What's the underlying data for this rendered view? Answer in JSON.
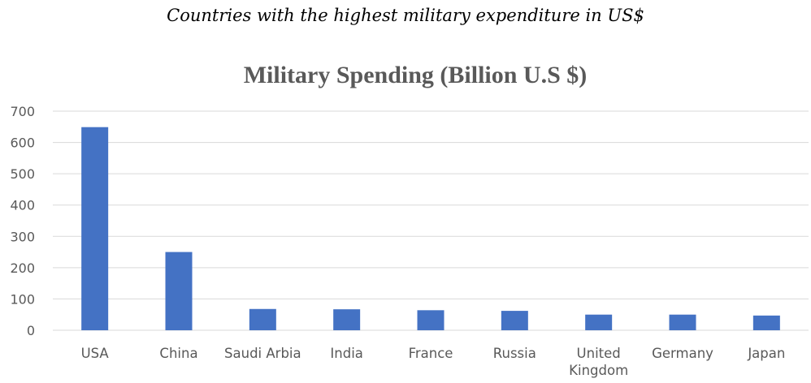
{
  "caption": "Countries with the highest military expenditure in US$",
  "chart_data": {
    "type": "bar",
    "title": "Military Spending (Billion U.S $)",
    "xlabel": "",
    "ylabel": "",
    "categories": [
      [
        "USA"
      ],
      [
        "China"
      ],
      [
        "Saudi Arbia"
      ],
      [
        "India"
      ],
      [
        "France"
      ],
      [
        "Russia"
      ],
      [
        "United",
        "Kingdom"
      ],
      [
        "Germany"
      ],
      [
        "Japan"
      ]
    ],
    "values": [
      649,
      250,
      68,
      67,
      64,
      62,
      50,
      50,
      47
    ],
    "ylim": [
      0,
      700
    ],
    "yticks": [
      0,
      100,
      200,
      300,
      400,
      500,
      600,
      700
    ],
    "grid": true,
    "legend": "none",
    "bar_color": "#4472c4"
  }
}
